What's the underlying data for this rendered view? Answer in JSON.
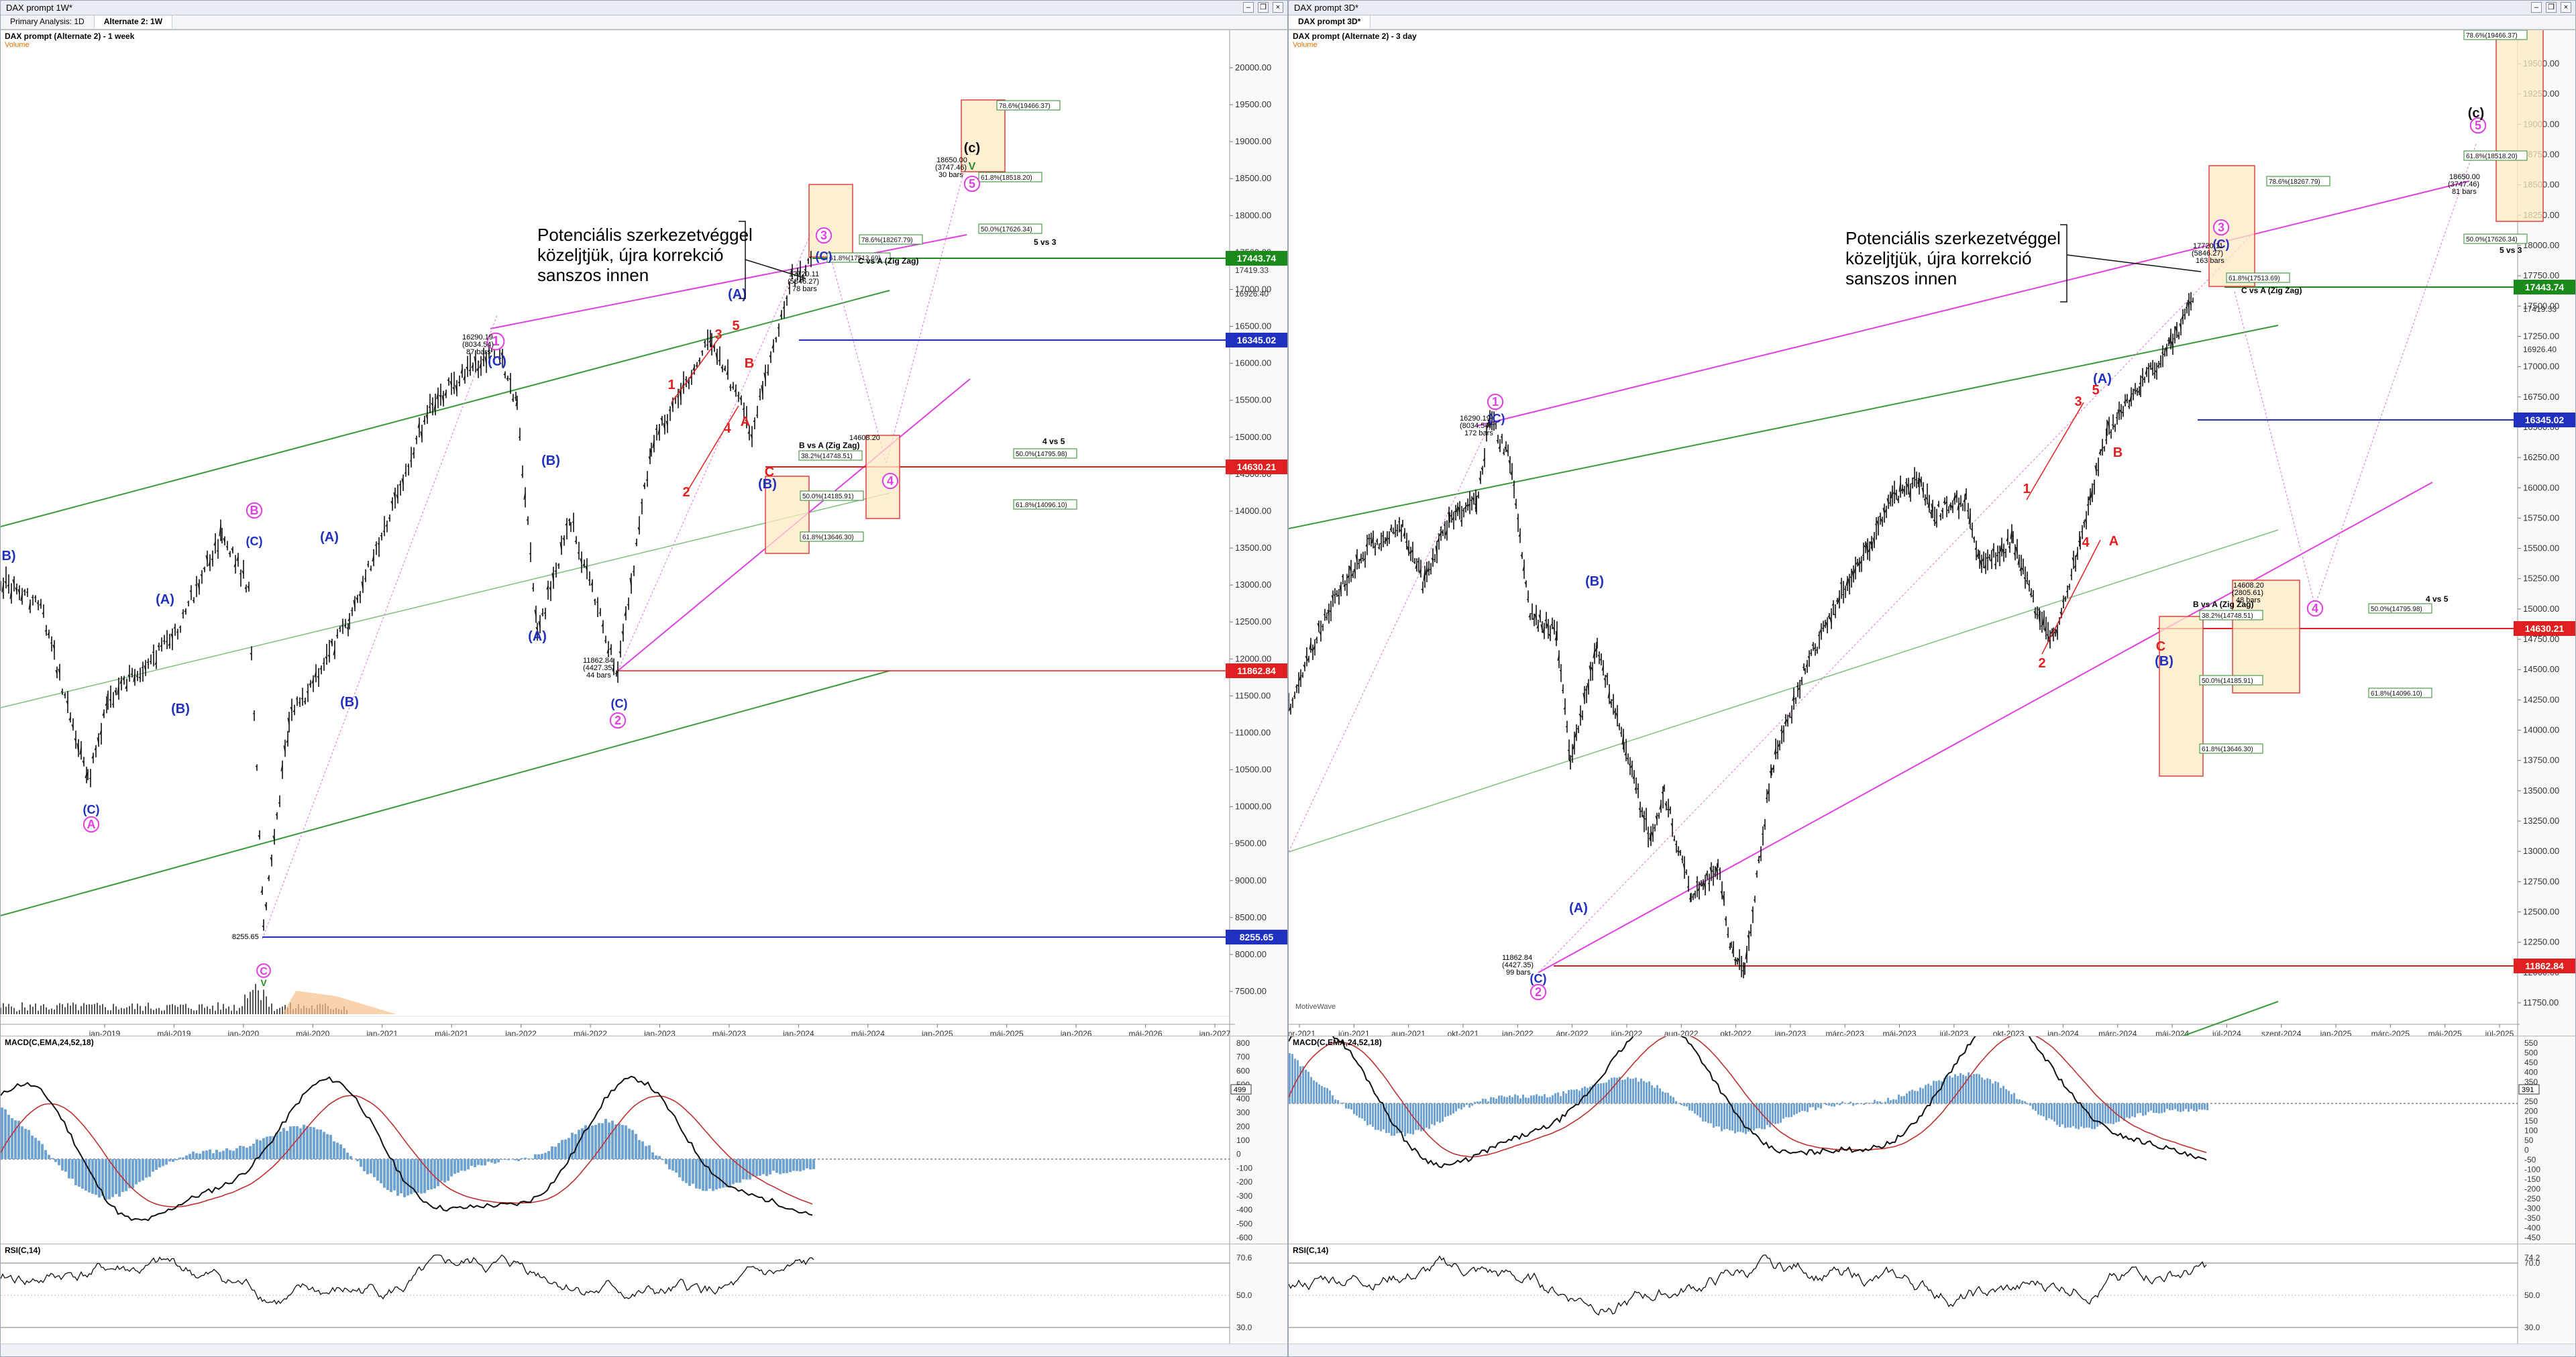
{
  "left": {
    "window_title": "DAX prompt 1W*",
    "tabs": [
      "Primary Analysis: 1D",
      "Alternate 2: 1W"
    ],
    "chart_title": "DAX prompt (Alternate 2) - 1 week",
    "volume_label": "Volume",
    "annotation": "Potenciális szerkezetvéggel közeljtjük, újra korrekció sanszos innen",
    "macd_label": "MACD(C,EMA,24,52,18)",
    "rsi_label": "RSI(C,14)",
    "price_ticks": [
      "20000.00",
      "19500.00",
      "19000.00",
      "18500.00",
      "18000.00",
      "17500.00",
      "17000.00",
      "16500.00",
      "16000.00",
      "15500.00",
      "15000.00",
      "14500.00",
      "14000.00",
      "13500.00",
      "13000.00",
      "12500.00",
      "12000.00",
      "11500.00",
      "11000.00",
      "10500.00",
      "10000.00",
      "9500.00",
      "9000.00",
      "8500.00",
      "8000.00",
      "7500.00"
    ],
    "date_ticks": [
      "jan-2019",
      "máj-2019",
      "jan-2020",
      "máj-2020",
      "jan-2021",
      "máj-2021",
      "jan-2022",
      "máj-2022",
      "jan-2023",
      "máj-2023",
      "jan-2024",
      "máj-2024",
      "jan-2025",
      "máj-2025",
      "jan-2026",
      "máj-2026",
      "jan-2027"
    ],
    "macd_ticks": [
      "800",
      "700",
      "600",
      "500",
      "400",
      "300",
      "200",
      "100",
      "0",
      "-100",
      "-200",
      "-300",
      "-400",
      "-500",
      "-600"
    ],
    "macd_current": "499",
    "rsi_ticks": [
      "70.6",
      "50.0",
      "30.0"
    ],
    "level_labels": {
      "l17443": "17443.74",
      "l17419": "17419.33",
      "l17028": "16926.40",
      "l16345": "16345.02",
      "l14630": "14630.21",
      "l11862": "11862.84",
      "l8255": "8255.65"
    },
    "box_labels": {
      "b1": "78.6%(18267.79)",
      "b2": "61.8%(17513.69)",
      "b3": "78.6%(19466.37)",
      "b4": "61.8%(18518.20)",
      "b5": "50.0%(17626.34)",
      "b6": "38.2%(14748.51)",
      "b7": "50.0%(14795.98)",
      "b8": "50.0%(14185.91)",
      "b9": "61.8%(14096.10)",
      "b10": "61.8%(13646.30)"
    },
    "text_labels": {
      "cvsa": "C vs A (Zig Zag)",
      "bvsa": "B vs A (Zig Zag)",
      "fivevs3": "5 vs 3",
      "fourvs5": "4 vs 5",
      "p18650": "18650.00",
      "p18650b": "(3747.46)",
      "p18650c": "30 bars",
      "p17720": "17720.11",
      "p17720b": "(5846.27)",
      "p17720c": "78 bars",
      "p16290": "16290.19",
      "p16290b": "(8034.54)",
      "p16290c": "87 bars",
      "p14608": "14608.20",
      "p11862": "11862.84",
      "p11862b": "(4427.35)",
      "p11862c": "44 bars",
      "p8255": "8255.65"
    },
    "waves": [
      "(1)",
      "(C)",
      "(2)",
      "(3)",
      "(4)",
      "(5)",
      "(A)",
      "(B)",
      "(C)",
      "1",
      "2",
      "3",
      "4",
      "5",
      "A",
      "B",
      "C",
      "(c)",
      "V"
    ]
  },
  "right": {
    "window_title": "DAX prompt 3D*",
    "tabs": [
      "DAX prompt 3D*"
    ],
    "chart_title": "DAX prompt (Alternate 2) - 3 day",
    "volume_label": "Volume",
    "annotation": "Potenciális szerkezetvéggel közeljtjük, újra korrekció sanszos innen",
    "macd_label": "MACD(C,EMA,24,52,18)",
    "rsi_label": "RSI(C,14)",
    "watermark": "MotiveWave",
    "price_ticks": [
      "19500.00",
      "19250.00",
      "19000.00",
      "18750.00",
      "18500.00",
      "18250.00",
      "18000.00",
      "17750.00",
      "17500.00",
      "17250.00",
      "17000.00",
      "16750.00",
      "16500.00",
      "16250.00",
      "16000.00",
      "15750.00",
      "15500.00",
      "15250.00",
      "15000.00",
      "14750.00",
      "14500.00",
      "14250.00",
      "14000.00",
      "13750.00",
      "13500.00",
      "13250.00",
      "13000.00",
      "12750.00",
      "12500.00",
      "12250.00",
      "12000.00",
      "11750.00"
    ],
    "date_ticks": [
      "ápr-2021",
      "jún-2021",
      "aug-2021",
      "okt-2021",
      "jan-2022",
      "ápr-2022",
      "jún-2022",
      "aug-2022",
      "okt-2022",
      "jan-2023",
      "márc-2023",
      "máj-2023",
      "júl-2023",
      "okt-2023",
      "jan-2024",
      "márc-2024",
      "máj-2024",
      "júl-2024",
      "szept-2024",
      "jan-2025",
      "márc-2025",
      "máj-2025",
      "júl-2025"
    ],
    "macd_ticks": [
      "550",
      "500",
      "450",
      "400",
      "350",
      "300",
      "250",
      "200",
      "150",
      "100",
      "50",
      "0",
      "-50",
      "-100",
      "-150",
      "-200",
      "-250",
      "-300",
      "-350",
      "-400",
      "-450"
    ],
    "macd_current": "391",
    "rsi_ticks": [
      "74.2",
      "70.0",
      "50.0",
      "30.0"
    ],
    "level_labels": {
      "l17443": "17443.74",
      "l17419": "17419.33",
      "l16926": "16926.40",
      "l16345": "16345.02",
      "l14630": "14630.21",
      "l11862": "11862.84"
    },
    "box_labels": {
      "b1": "78.6%(18267.79)",
      "b2": "61.8%(17513.69)",
      "b3": "78.6%(19466.37)",
      "b4": "61.8%(18518.20)",
      "b5": "50.0%(17626.34)",
      "b6": "38.2%(14748.51)",
      "b7": "50.0%(14795.98)",
      "b8": "50.0%(14185.91)",
      "b9": "61.8%(14096.10)",
      "b10": "61.8%(13646.30)"
    },
    "text_labels": {
      "cvsa": "C vs A (Zig Zag)",
      "bvsa": "B vs A (Zig Zag)",
      "fivevs3": "5 vs 3",
      "fourvs5": "4 vs 5",
      "p18650": "18650.00",
      "p18650b": "(3747.46)",
      "p18650c": "81 bars",
      "p17720": "17720.11",
      "p17720b": "(5846.27)",
      "p17720c": "163 bars",
      "p16290": "16290.19",
      "p16290b": "(8034.54)",
      "p16290c": "172 bars",
      "p14608": "14608.20",
      "p14608b": "(2805.61)",
      "p14608c": "48 bars",
      "p11862": "11862.84",
      "p11862b": "(4427.35)",
      "p11862c": "99 bars"
    },
    "waves": [
      "(1)",
      "(C)",
      "(2)",
      "(3)",
      "(4)",
      "(A)",
      "(B)",
      "(C)",
      "1",
      "2",
      "3",
      "4",
      "5",
      "A",
      "B",
      "C",
      "(c)"
    ]
  },
  "chart_data": [
    {
      "type": "line",
      "title": "DAX prompt (Alternate 2) - 1 week",
      "xlabel": "",
      "ylabel": "",
      "ylim": [
        7250,
        20500
      ],
      "x": [
        "jan-2019",
        "máj-2019",
        "jan-2020",
        "máj-2020",
        "jan-2021",
        "máj-2021",
        "jan-2022",
        "máj-2022",
        "jan-2023",
        "máj-2023",
        "jan-2024"
      ],
      "series": [
        {
          "values": [
            10600,
            11800,
            13300,
            10700,
            13800,
            15400,
            16000,
            13500,
            14000,
            16100,
            16900
          ]
        }
      ],
      "levels": [
        17443.74,
        16345.02,
        14630.21,
        11862.84,
        8255.65
      ]
    },
    {
      "type": "line",
      "title": "DAX prompt (Alternate 2) - 3 day",
      "xlabel": "",
      "ylabel": "",
      "ylim": [
        11600,
        19650
      ],
      "x": [
        "ápr-2021",
        "jún-2021",
        "aug-2021",
        "okt-2021",
        "jan-2022",
        "ápr-2022",
        "jún-2022",
        "aug-2022",
        "okt-2022",
        "jan-2023",
        "márc-2023",
        "máj-2023",
        "júl-2023",
        "okt-2023",
        "jan-2024",
        "márc-2024"
      ],
      "series": [
        {
          "values": [
            14500,
            15600,
            15800,
            15300,
            16100,
            14300,
            13500,
            13200,
            11900,
            14300,
            15300,
            16000,
            16100,
            14800,
            16800,
            17400
          ]
        }
      ],
      "levels": [
        17443.74,
        16345.02,
        14630.21,
        11862.84
      ]
    }
  ]
}
